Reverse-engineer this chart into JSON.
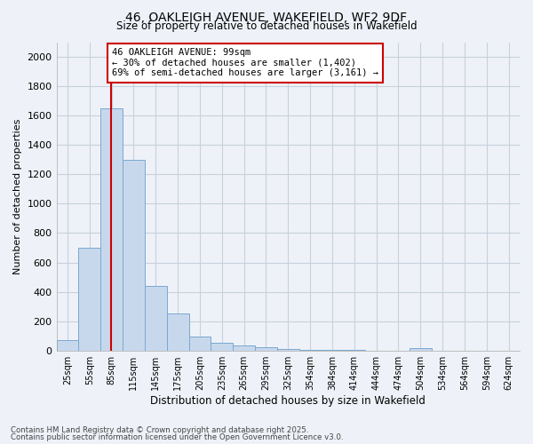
{
  "title1": "46, OAKLEIGH AVENUE, WAKEFIELD, WF2 9DF",
  "title2": "Size of property relative to detached houses in Wakefield",
  "xlabel": "Distribution of detached houses by size in Wakefield",
  "ylabel": "Number of detached properties",
  "bar_color": "#c8d8ec",
  "bar_edge_color": "#7aa8d0",
  "vline_color": "#cc0000",
  "annotation_text": "46 OAKLEIGH AVENUE: 99sqm\n← 30% of detached houses are smaller (1,402)\n69% of semi-detached houses are larger (3,161) →",
  "annotation_box_color": "#ffffff",
  "annotation_box_edge": "#cc0000",
  "footer1": "Contains HM Land Registry data © Crown copyright and database right 2025.",
  "footer2": "Contains public sector information licensed under the Open Government Licence v3.0.",
  "categories": [
    "25sqm",
    "55sqm",
    "85sqm",
    "115sqm",
    "145sqm",
    "175sqm",
    "205sqm",
    "235sqm",
    "265sqm",
    "295sqm",
    "325sqm",
    "354sqm",
    "384sqm",
    "414sqm",
    "444sqm",
    "474sqm",
    "504sqm",
    "534sqm",
    "564sqm",
    "594sqm",
    "624sqm"
  ],
  "values": [
    70,
    700,
    1650,
    1300,
    440,
    250,
    95,
    55,
    35,
    20,
    10,
    5,
    3,
    2,
    1,
    1,
    15,
    0,
    0,
    0,
    0
  ],
  "ylim": [
    0,
    2100
  ],
  "yticks": [
    0,
    200,
    400,
    600,
    800,
    1000,
    1200,
    1400,
    1600,
    1800,
    2000
  ],
  "background_color": "#eef2f8",
  "grid_color": "#c8d0dc"
}
